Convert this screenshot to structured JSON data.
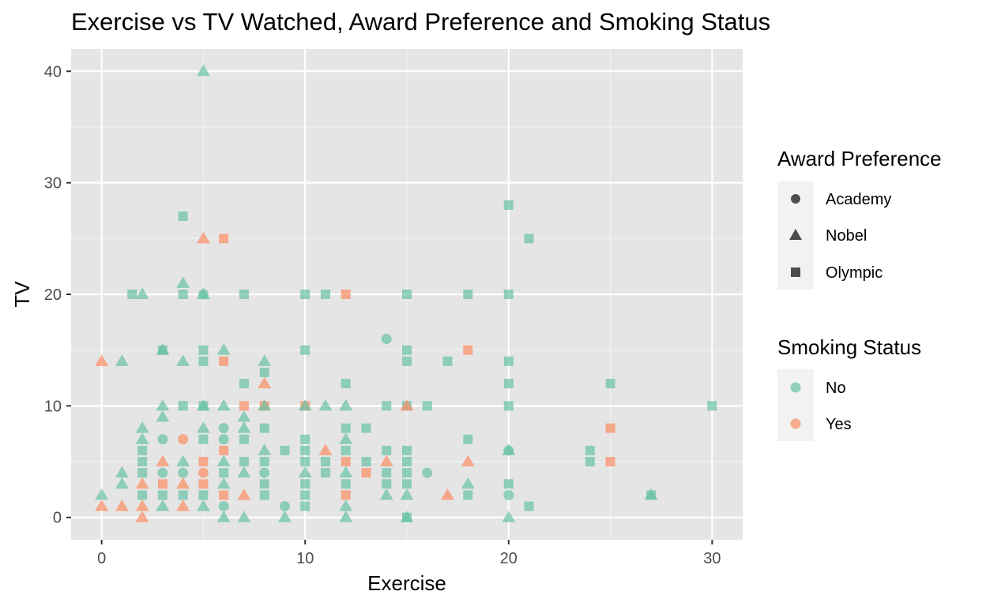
{
  "chart_data": {
    "type": "scatter",
    "title": "Exercise vs TV Watched, Award Preference and Smoking Status",
    "xlabel": "Exercise",
    "ylabel": "TV",
    "xlim": [
      -1.5,
      31.5
    ],
    "ylim": [
      -2,
      42
    ],
    "x_ticks": [
      0,
      10,
      20,
      30
    ],
    "y_ticks": [
      0,
      10,
      20,
      30,
      40
    ],
    "grid": true,
    "legend_placement": "right",
    "legends": {
      "shape": {
        "title": "Award Preference",
        "entries": [
          {
            "label": "Academy",
            "shape": "circle"
          },
          {
            "label": "Nobel",
            "shape": "triangle"
          },
          {
            "label": "Olympic",
            "shape": "square"
          }
        ]
      },
      "color": {
        "title": "Smoking Status",
        "entries": [
          {
            "label": "No",
            "color": "#66c2a5"
          },
          {
            "label": "Yes",
            "color": "#fc8d62"
          }
        ]
      }
    },
    "colors": {
      "No": "#66c2a5",
      "Yes": "#fc8d62"
    },
    "point_alpha": 0.7,
    "points": [
      {
        "x": 5,
        "y": 40,
        "award": "Nobel",
        "smoke": "No"
      },
      {
        "x": 4,
        "y": 27,
        "award": "Olympic",
        "smoke": "No"
      },
      {
        "x": 5,
        "y": 25,
        "award": "Nobel",
        "smoke": "Yes"
      },
      {
        "x": 6,
        "y": 25,
        "award": "Olympic",
        "smoke": "Yes"
      },
      {
        "x": 20,
        "y": 28,
        "award": "Olympic",
        "smoke": "No"
      },
      {
        "x": 21,
        "y": 25,
        "award": "Olympic",
        "smoke": "No"
      },
      {
        "x": 1.5,
        "y": 20,
        "award": "Olympic",
        "smoke": "No"
      },
      {
        "x": 2,
        "y": 20,
        "award": "Nobel",
        "smoke": "No"
      },
      {
        "x": 4,
        "y": 21,
        "award": "Nobel",
        "smoke": "No"
      },
      {
        "x": 4,
        "y": 20,
        "award": "Olympic",
        "smoke": "No"
      },
      {
        "x": 5,
        "y": 20,
        "award": "Academy",
        "smoke": "No"
      },
      {
        "x": 5,
        "y": 20,
        "award": "Nobel",
        "smoke": "No"
      },
      {
        "x": 7,
        "y": 20,
        "award": "Olympic",
        "smoke": "No"
      },
      {
        "x": 10,
        "y": 20,
        "award": "Olympic",
        "smoke": "No"
      },
      {
        "x": 11,
        "y": 20,
        "award": "Olympic",
        "smoke": "No"
      },
      {
        "x": 12,
        "y": 20,
        "award": "Olympic",
        "smoke": "Yes"
      },
      {
        "x": 15,
        "y": 20,
        "award": "Olympic",
        "smoke": "No"
      },
      {
        "x": 18,
        "y": 20,
        "award": "Olympic",
        "smoke": "No"
      },
      {
        "x": 20,
        "y": 20,
        "award": "Olympic",
        "smoke": "No"
      },
      {
        "x": 0,
        "y": 14,
        "award": "Nobel",
        "smoke": "Yes"
      },
      {
        "x": 1,
        "y": 14,
        "award": "Nobel",
        "smoke": "No"
      },
      {
        "x": 3,
        "y": 15,
        "award": "Nobel",
        "smoke": "No"
      },
      {
        "x": 3,
        "y": 15,
        "award": "Olympic",
        "smoke": "No"
      },
      {
        "x": 4,
        "y": 14,
        "award": "Nobel",
        "smoke": "No"
      },
      {
        "x": 5,
        "y": 15,
        "award": "Olympic",
        "smoke": "No"
      },
      {
        "x": 5,
        "y": 14,
        "award": "Olympic",
        "smoke": "No"
      },
      {
        "x": 6,
        "y": 15,
        "award": "Nobel",
        "smoke": "No"
      },
      {
        "x": 6,
        "y": 14,
        "award": "Olympic",
        "smoke": "Yes"
      },
      {
        "x": 8,
        "y": 14,
        "award": "Nobel",
        "smoke": "No"
      },
      {
        "x": 8,
        "y": 13,
        "award": "Olympic",
        "smoke": "No"
      },
      {
        "x": 8,
        "y": 12,
        "award": "Nobel",
        "smoke": "Yes"
      },
      {
        "x": 7,
        "y": 12,
        "award": "Olympic",
        "smoke": "No"
      },
      {
        "x": 10,
        "y": 15,
        "award": "Olympic",
        "smoke": "No"
      },
      {
        "x": 12,
        "y": 12,
        "award": "Olympic",
        "smoke": "No"
      },
      {
        "x": 14,
        "y": 16,
        "award": "Academy",
        "smoke": "No"
      },
      {
        "x": 15,
        "y": 15,
        "award": "Olympic",
        "smoke": "No"
      },
      {
        "x": 15,
        "y": 14,
        "award": "Olympic",
        "smoke": "No"
      },
      {
        "x": 17,
        "y": 14,
        "award": "Olympic",
        "smoke": "No"
      },
      {
        "x": 18,
        "y": 15,
        "award": "Olympic",
        "smoke": "Yes"
      },
      {
        "x": 20,
        "y": 14,
        "award": "Olympic",
        "smoke": "No"
      },
      {
        "x": 20,
        "y": 12,
        "award": "Olympic",
        "smoke": "No"
      },
      {
        "x": 25,
        "y": 12,
        "award": "Olympic",
        "smoke": "No"
      },
      {
        "x": 30,
        "y": 10,
        "award": "Olympic",
        "smoke": "No"
      },
      {
        "x": 3,
        "y": 10,
        "award": "Nobel",
        "smoke": "No"
      },
      {
        "x": 3,
        "y": 9,
        "award": "Nobel",
        "smoke": "No"
      },
      {
        "x": 4,
        "y": 10,
        "award": "Olympic",
        "smoke": "No"
      },
      {
        "x": 5,
        "y": 10,
        "award": "Nobel",
        "smoke": "No"
      },
      {
        "x": 5,
        "y": 10,
        "award": "Olympic",
        "smoke": "No"
      },
      {
        "x": 6,
        "y": 10,
        "award": "Nobel",
        "smoke": "No"
      },
      {
        "x": 7,
        "y": 10,
        "award": "Olympic",
        "smoke": "Yes"
      },
      {
        "x": 7,
        "y": 9,
        "award": "Nobel",
        "smoke": "No"
      },
      {
        "x": 8,
        "y": 10,
        "award": "Olympic",
        "smoke": "Yes"
      },
      {
        "x": 8,
        "y": 10,
        "award": "Nobel",
        "smoke": "No"
      },
      {
        "x": 10,
        "y": 10,
        "award": "Olympic",
        "smoke": "Yes"
      },
      {
        "x": 10,
        "y": 10,
        "award": "Nobel",
        "smoke": "No"
      },
      {
        "x": 11,
        "y": 10,
        "award": "Nobel",
        "smoke": "No"
      },
      {
        "x": 12,
        "y": 10,
        "award": "Nobel",
        "smoke": "No"
      },
      {
        "x": 14,
        "y": 10,
        "award": "Olympic",
        "smoke": "No"
      },
      {
        "x": 15,
        "y": 10,
        "award": "Olympic",
        "smoke": "No"
      },
      {
        "x": 15,
        "y": 10,
        "award": "Nobel",
        "smoke": "Yes"
      },
      {
        "x": 16,
        "y": 10,
        "award": "Olympic",
        "smoke": "No"
      },
      {
        "x": 20,
        "y": 10,
        "award": "Olympic",
        "smoke": "No"
      },
      {
        "x": 2,
        "y": 8,
        "award": "Nobel",
        "smoke": "No"
      },
      {
        "x": 2,
        "y": 7,
        "award": "Nobel",
        "smoke": "No"
      },
      {
        "x": 2,
        "y": 6,
        "award": "Olympic",
        "smoke": "No"
      },
      {
        "x": 3,
        "y": 7,
        "award": "Academy",
        "smoke": "No"
      },
      {
        "x": 4,
        "y": 7,
        "award": "Academy",
        "smoke": "Yes"
      },
      {
        "x": 5,
        "y": 8,
        "award": "Nobel",
        "smoke": "No"
      },
      {
        "x": 5,
        "y": 7,
        "award": "Olympic",
        "smoke": "No"
      },
      {
        "x": 6,
        "y": 8,
        "award": "Academy",
        "smoke": "No"
      },
      {
        "x": 6,
        "y": 7,
        "award": "Academy",
        "smoke": "No"
      },
      {
        "x": 6,
        "y": 6,
        "award": "Olympic",
        "smoke": "Yes"
      },
      {
        "x": 7,
        "y": 8,
        "award": "Nobel",
        "smoke": "No"
      },
      {
        "x": 7,
        "y": 7,
        "award": "Olympic",
        "smoke": "No"
      },
      {
        "x": 8,
        "y": 8,
        "award": "Olympic",
        "smoke": "No"
      },
      {
        "x": 8,
        "y": 6,
        "award": "Nobel",
        "smoke": "No"
      },
      {
        "x": 9,
        "y": 6,
        "award": "Olympic",
        "smoke": "No"
      },
      {
        "x": 10,
        "y": 7,
        "award": "Olympic",
        "smoke": "No"
      },
      {
        "x": 10,
        "y": 6,
        "award": "Olympic",
        "smoke": "No"
      },
      {
        "x": 11,
        "y": 6,
        "award": "Nobel",
        "smoke": "Yes"
      },
      {
        "x": 12,
        "y": 8,
        "award": "Olympic",
        "smoke": "No"
      },
      {
        "x": 12,
        "y": 7,
        "award": "Nobel",
        "smoke": "No"
      },
      {
        "x": 12,
        "y": 6,
        "award": "Olympic",
        "smoke": "No"
      },
      {
        "x": 13,
        "y": 8,
        "award": "Olympic",
        "smoke": "No"
      },
      {
        "x": 14,
        "y": 6,
        "award": "Olympic",
        "smoke": "No"
      },
      {
        "x": 15,
        "y": 6,
        "award": "Olympic",
        "smoke": "No"
      },
      {
        "x": 18,
        "y": 7,
        "award": "Olympic",
        "smoke": "No"
      },
      {
        "x": 20,
        "y": 6,
        "award": "Nobel",
        "smoke": "No"
      },
      {
        "x": 20,
        "y": 6,
        "award": "Academy",
        "smoke": "No"
      },
      {
        "x": 24,
        "y": 6,
        "award": "Olympic",
        "smoke": "No"
      },
      {
        "x": 25,
        "y": 8,
        "award": "Olympic",
        "smoke": "Yes"
      },
      {
        "x": 1,
        "y": 4,
        "award": "Nobel",
        "smoke": "No"
      },
      {
        "x": 1,
        "y": 3,
        "award": "Nobel",
        "smoke": "No"
      },
      {
        "x": 2,
        "y": 5,
        "award": "Olympic",
        "smoke": "No"
      },
      {
        "x": 2,
        "y": 4,
        "award": "Olympic",
        "smoke": "No"
      },
      {
        "x": 2,
        "y": 3,
        "award": "Nobel",
        "smoke": "Yes"
      },
      {
        "x": 3,
        "y": 5,
        "award": "Nobel",
        "smoke": "Yes"
      },
      {
        "x": 3,
        "y": 4,
        "award": "Academy",
        "smoke": "No"
      },
      {
        "x": 3,
        "y": 3,
        "award": "Olympic",
        "smoke": "Yes"
      },
      {
        "x": 4,
        "y": 5,
        "award": "Nobel",
        "smoke": "No"
      },
      {
        "x": 4,
        "y": 4,
        "award": "Academy",
        "smoke": "No"
      },
      {
        "x": 4,
        "y": 3,
        "award": "Nobel",
        "smoke": "Yes"
      },
      {
        "x": 5,
        "y": 5,
        "award": "Olympic",
        "smoke": "Yes"
      },
      {
        "x": 5,
        "y": 4,
        "award": "Academy",
        "smoke": "Yes"
      },
      {
        "x": 5,
        "y": 3,
        "award": "Olympic",
        "smoke": "Yes"
      },
      {
        "x": 6,
        "y": 5,
        "award": "Nobel",
        "smoke": "No"
      },
      {
        "x": 6,
        "y": 4,
        "award": "Olympic",
        "smoke": "No"
      },
      {
        "x": 6,
        "y": 3,
        "award": "Nobel",
        "smoke": "No"
      },
      {
        "x": 7,
        "y": 5,
        "award": "Olympic",
        "smoke": "No"
      },
      {
        "x": 7,
        "y": 4,
        "award": "Nobel",
        "smoke": "No"
      },
      {
        "x": 8,
        "y": 5,
        "award": "Olympic",
        "smoke": "No"
      },
      {
        "x": 8,
        "y": 4,
        "award": "Academy",
        "smoke": "No"
      },
      {
        "x": 8,
        "y": 3,
        "award": "Olympic",
        "smoke": "No"
      },
      {
        "x": 10,
        "y": 5,
        "award": "Olympic",
        "smoke": "No"
      },
      {
        "x": 10,
        "y": 4,
        "award": "Nobel",
        "smoke": "No"
      },
      {
        "x": 10,
        "y": 3,
        "award": "Olympic",
        "smoke": "No"
      },
      {
        "x": 11,
        "y": 5,
        "award": "Olympic",
        "smoke": "No"
      },
      {
        "x": 11,
        "y": 4,
        "award": "Olympic",
        "smoke": "No"
      },
      {
        "x": 12,
        "y": 5,
        "award": "Olympic",
        "smoke": "Yes"
      },
      {
        "x": 12,
        "y": 4,
        "award": "Nobel",
        "smoke": "No"
      },
      {
        "x": 12,
        "y": 3,
        "award": "Olympic",
        "smoke": "No"
      },
      {
        "x": 13,
        "y": 5,
        "award": "Olympic",
        "smoke": "No"
      },
      {
        "x": 13,
        "y": 4,
        "award": "Olympic",
        "smoke": "Yes"
      },
      {
        "x": 14,
        "y": 5,
        "award": "Nobel",
        "smoke": "Yes"
      },
      {
        "x": 14,
        "y": 4,
        "award": "Olympic",
        "smoke": "No"
      },
      {
        "x": 14,
        "y": 3,
        "award": "Olympic",
        "smoke": "No"
      },
      {
        "x": 15,
        "y": 5,
        "award": "Olympic",
        "smoke": "No"
      },
      {
        "x": 15,
        "y": 4,
        "award": "Olympic",
        "smoke": "No"
      },
      {
        "x": 15,
        "y": 3,
        "award": "Olympic",
        "smoke": "No"
      },
      {
        "x": 16,
        "y": 4,
        "award": "Academy",
        "smoke": "No"
      },
      {
        "x": 18,
        "y": 5,
        "award": "Nobel",
        "smoke": "Yes"
      },
      {
        "x": 18,
        "y": 3,
        "award": "Nobel",
        "smoke": "No"
      },
      {
        "x": 24,
        "y": 5,
        "award": "Olympic",
        "smoke": "No"
      },
      {
        "x": 25,
        "y": 5,
        "award": "Olympic",
        "smoke": "Yes"
      },
      {
        "x": 0,
        "y": 2,
        "award": "Nobel",
        "smoke": "No"
      },
      {
        "x": 0,
        "y": 1,
        "award": "Nobel",
        "smoke": "Yes"
      },
      {
        "x": 1,
        "y": 1,
        "award": "Nobel",
        "smoke": "Yes"
      },
      {
        "x": 2,
        "y": 2,
        "award": "Olympic",
        "smoke": "No"
      },
      {
        "x": 2,
        "y": 1,
        "award": "Nobel",
        "smoke": "Yes"
      },
      {
        "x": 2,
        "y": 0,
        "award": "Nobel",
        "smoke": "Yes"
      },
      {
        "x": 3,
        "y": 2,
        "award": "Olympic",
        "smoke": "No"
      },
      {
        "x": 3,
        "y": 1,
        "award": "Nobel",
        "smoke": "No"
      },
      {
        "x": 4,
        "y": 2,
        "award": "Olympic",
        "smoke": "No"
      },
      {
        "x": 4,
        "y": 1,
        "award": "Nobel",
        "smoke": "Yes"
      },
      {
        "x": 5,
        "y": 2,
        "award": "Olympic",
        "smoke": "No"
      },
      {
        "x": 5,
        "y": 1,
        "award": "Nobel",
        "smoke": "No"
      },
      {
        "x": 6,
        "y": 2,
        "award": "Olympic",
        "smoke": "Yes"
      },
      {
        "x": 6,
        "y": 1,
        "award": "Academy",
        "smoke": "No"
      },
      {
        "x": 6,
        "y": 0,
        "award": "Nobel",
        "smoke": "No"
      },
      {
        "x": 7,
        "y": 2,
        "award": "Nobel",
        "smoke": "Yes"
      },
      {
        "x": 7,
        "y": 0,
        "award": "Nobel",
        "smoke": "No"
      },
      {
        "x": 8,
        "y": 2,
        "award": "Olympic",
        "smoke": "No"
      },
      {
        "x": 9,
        "y": 1,
        "award": "Academy",
        "smoke": "No"
      },
      {
        "x": 9,
        "y": 0,
        "award": "Nobel",
        "smoke": "No"
      },
      {
        "x": 10,
        "y": 2,
        "award": "Olympic",
        "smoke": "No"
      },
      {
        "x": 10,
        "y": 1,
        "award": "Olympic",
        "smoke": "No"
      },
      {
        "x": 12,
        "y": 2,
        "award": "Olympic",
        "smoke": "Yes"
      },
      {
        "x": 12,
        "y": 1,
        "award": "Nobel",
        "smoke": "No"
      },
      {
        "x": 12,
        "y": 0,
        "award": "Nobel",
        "smoke": "No"
      },
      {
        "x": 14,
        "y": 2,
        "award": "Nobel",
        "smoke": "No"
      },
      {
        "x": 15,
        "y": 2,
        "award": "Nobel",
        "smoke": "No"
      },
      {
        "x": 15,
        "y": 0,
        "award": "Olympic",
        "smoke": "No"
      },
      {
        "x": 15,
        "y": 0,
        "award": "Nobel",
        "smoke": "No"
      },
      {
        "x": 17,
        "y": 2,
        "award": "Nobel",
        "smoke": "Yes"
      },
      {
        "x": 18,
        "y": 2,
        "award": "Olympic",
        "smoke": "No"
      },
      {
        "x": 20,
        "y": 3,
        "award": "Olympic",
        "smoke": "No"
      },
      {
        "x": 20,
        "y": 2,
        "award": "Academy",
        "smoke": "No"
      },
      {
        "x": 20,
        "y": 0,
        "award": "Nobel",
        "smoke": "No"
      },
      {
        "x": 21,
        "y": 1,
        "award": "Olympic",
        "smoke": "No"
      },
      {
        "x": 27,
        "y": 2,
        "award": "Nobel",
        "smoke": "No"
      },
      {
        "x": 27,
        "y": 2,
        "award": "Olympic",
        "smoke": "No"
      }
    ]
  }
}
